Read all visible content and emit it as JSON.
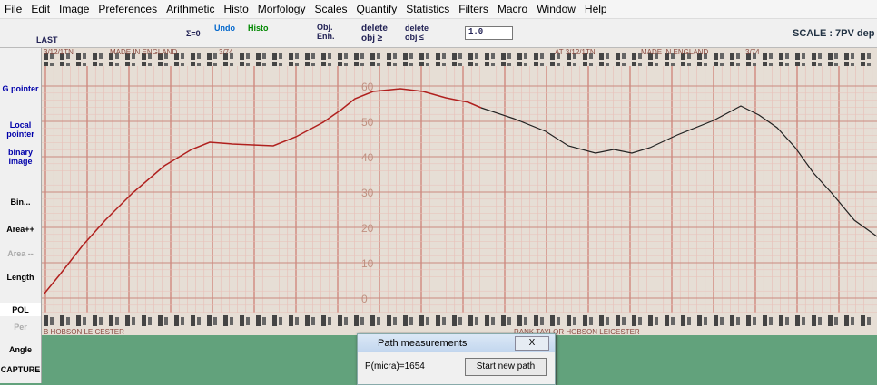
{
  "menu": [
    "File",
    "Edit",
    "Image",
    "Preferences",
    "Arithmetic",
    "Histo",
    "Morfology",
    "Scales",
    "Quantify",
    "Statistics",
    "Filters",
    "Macro",
    "Window",
    "Help"
  ],
  "toolbar": {
    "last": "LAST",
    "sum": "Σ=0",
    "undo": "Undo",
    "histo": "Histo",
    "obj": "Obj.",
    "enh": "Enh.",
    "delete_ge": "delete obj ≥",
    "delete_le": "delete obj ≤",
    "zoom": "1.0",
    "scale": "SCALE : 7PV dep"
  },
  "sidebar": [
    "G pointer",
    "Local pointer",
    "binary image",
    "Bin...",
    "Area++",
    "Area --",
    "Length",
    "POL",
    "Per",
    "Angle",
    "CAPTURE"
  ],
  "paper": {
    "top_left": "3/12/1TN",
    "top_made": "MADE IN ENGLAND",
    "top_date": "3/74",
    "top_right": "AT 3/12/1TN",
    "top_made2": "MADE IN ENGLAND",
    "top_date2": "3/74",
    "bottom_left": "B HOBSON LEICESTER",
    "bottom_right": "RANK TAYLOR HOBSON LEICESTER",
    "scale_labels": [
      "60",
      "50",
      "40",
      "30",
      "20",
      "10",
      "0"
    ]
  },
  "dialog": {
    "title": "Path measurements",
    "close": "X",
    "result": "P(micra)=1654",
    "button": "Start new path"
  }
}
